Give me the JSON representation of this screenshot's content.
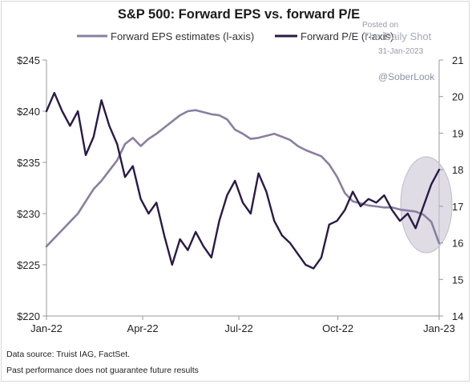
{
  "chart_data": {
    "type": "line",
    "title": "S&P 500: Forward EPS vs. forward P/E",
    "legend_position": "top",
    "x_ticks": [
      "Jan-22",
      "Apr-22",
      "Jul-22",
      "Oct-22",
      "Jan-23"
    ],
    "y_left": {
      "ticks": [
        "$220",
        "$225",
        "$230",
        "$235",
        "$240",
        "$245"
      ],
      "lim": [
        220,
        245
      ]
    },
    "y_right": {
      "ticks": [
        "14",
        "15",
        "16",
        "17",
        "18",
        "19",
        "20",
        "21"
      ],
      "lim": [
        14,
        21
      ]
    },
    "grid": false,
    "series": [
      {
        "name": "Forward EPS estimates (l-axis)",
        "axis": "left",
        "color": "#8a7fa0",
        "x": [
          0,
          2,
          4,
          6,
          8,
          10,
          12,
          14,
          16,
          18,
          20,
          22,
          24,
          26,
          28,
          30,
          32,
          34,
          36,
          38,
          40,
          42,
          44,
          46,
          48,
          50,
          52,
          54,
          56,
          58,
          60,
          62,
          64,
          66,
          68,
          70,
          72,
          74,
          76,
          78,
          80,
          82,
          84,
          86,
          88,
          90,
          92,
          94,
          96,
          98,
          100
        ],
        "y": [
          226.8,
          227.6,
          228.4,
          229.2,
          230.0,
          231.2,
          232.4,
          233.2,
          234.2,
          235.2,
          236.8,
          237.4,
          236.6,
          237.3,
          237.8,
          238.4,
          239.0,
          239.6,
          240.0,
          240.1,
          239.9,
          239.7,
          239.6,
          239.2,
          238.2,
          237.8,
          237.3,
          237.4,
          237.6,
          237.8,
          237.5,
          237.2,
          236.6,
          236.2,
          235.9,
          235.6,
          234.8,
          233.6,
          232.0,
          231.2,
          231.0,
          230.8,
          230.7,
          230.6,
          230.6,
          230.4,
          230.3,
          230.2,
          229.9,
          229.2,
          227.1
        ]
      },
      {
        "name": "Forward P/E (r-axis)",
        "axis": "right",
        "color": "#2a1a45",
        "x": [
          0,
          2,
          4,
          6,
          8,
          10,
          12,
          14,
          16,
          18,
          20,
          22,
          24,
          26,
          28,
          30,
          32,
          34,
          36,
          38,
          40,
          42,
          44,
          46,
          48,
          50,
          52,
          54,
          56,
          58,
          60,
          62,
          64,
          66,
          68,
          70,
          72,
          74,
          76,
          78,
          80,
          82,
          84,
          86,
          88,
          90,
          92,
          94,
          96,
          98,
          100
        ],
        "y": [
          19.6,
          20.1,
          19.6,
          19.2,
          19.6,
          18.4,
          18.9,
          19.9,
          19.2,
          18.7,
          17.8,
          18.1,
          17.2,
          16.8,
          17.1,
          16.2,
          15.4,
          16.1,
          15.8,
          16.3,
          15.9,
          15.6,
          16.6,
          17.3,
          17.7,
          17.1,
          16.8,
          17.9,
          17.4,
          16.6,
          16.2,
          16.0,
          15.7,
          15.4,
          15.3,
          15.6,
          16.5,
          16.6,
          16.9,
          17.4,
          17.0,
          17.2,
          17.1,
          17.3,
          16.9,
          16.6,
          16.8,
          16.4,
          17.0,
          17.6,
          18.0
        ]
      }
    ],
    "annotation": "highlight ellipse over last ~3 months"
  },
  "footnotes": {
    "source": "Data source: Truist IAG, FactSet.",
    "disclaimer": "Past performance does not guarantee future results"
  },
  "watermark": {
    "posted_on": "Posted on",
    "brand": "The Daily Shot",
    "date": "31-Jan-2023",
    "handle": "@SoberLook"
  }
}
